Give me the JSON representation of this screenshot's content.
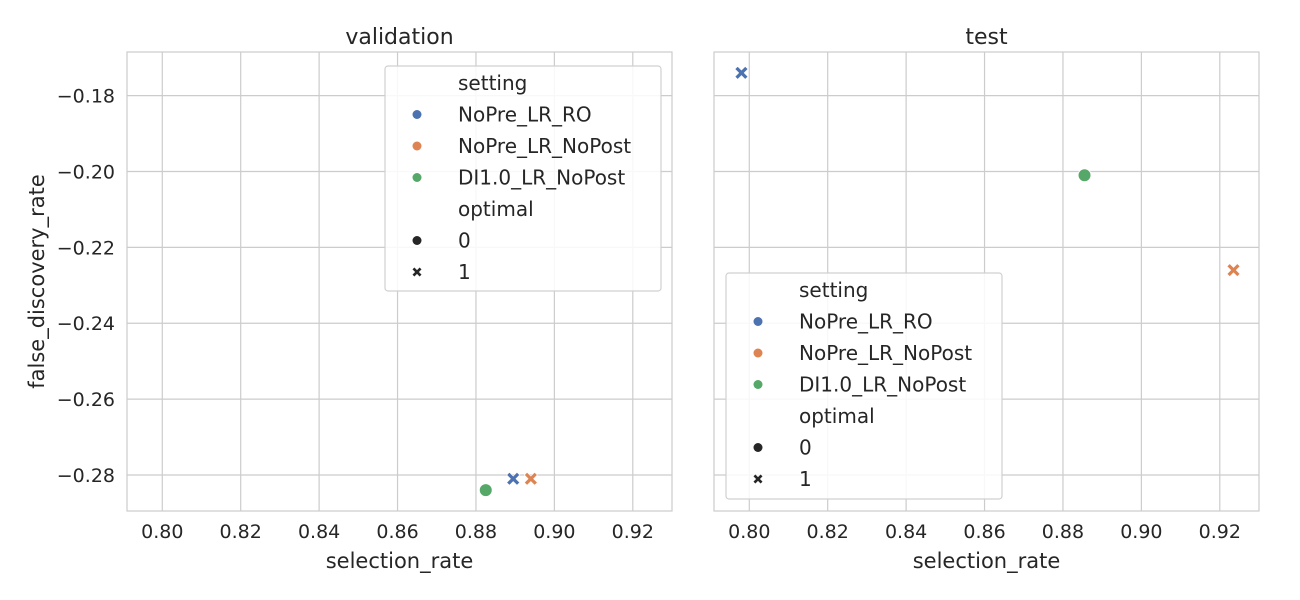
{
  "chart_data": {
    "type": "scatter",
    "xlabel": "selection_rate",
    "ylabel": "false_discovery_rate",
    "xlim": [
      0.791,
      0.93
    ],
    "ylim": [
      -0.2895,
      -0.1685
    ],
    "x_ticks": [
      "0.80",
      "0.82",
      "0.84",
      "0.86",
      "0.88",
      "0.90",
      "0.92"
    ],
    "x_tick_values": [
      0.8,
      0.82,
      0.84,
      0.86,
      0.88,
      0.9,
      0.92
    ],
    "y_ticks": [
      "−0.18",
      "−0.20",
      "−0.22",
      "−0.24",
      "−0.26",
      "−0.28"
    ],
    "y_tick_values": [
      -0.18,
      -0.2,
      -0.22,
      -0.24,
      -0.26,
      -0.28
    ],
    "grid": true,
    "colors": {
      "NoPre_LR_RO": "#4c72b0",
      "NoPre_LR_NoPost": "#dd8452",
      "DI1.0_LR_NoPost": "#55a868"
    },
    "legend": {
      "hue_title": "setting",
      "hue_entries": [
        "NoPre_LR_RO",
        "NoPre_LR_NoPost",
        "DI1.0_LR_NoPost"
      ],
      "style_title": "optimal",
      "style_entries": [
        "0",
        "1"
      ],
      "style_markers": [
        "circle",
        "x"
      ]
    },
    "panels": [
      {
        "title": "validation",
        "legend_placement": "upper-right",
        "points": [
          {
            "setting": "NoPre_LR_RO",
            "optimal": 1,
            "x": 0.8895,
            "y": -0.281
          },
          {
            "setting": "NoPre_LR_NoPost",
            "optimal": 1,
            "x": 0.894,
            "y": -0.281
          },
          {
            "setting": "DI1.0_LR_NoPost",
            "optimal": 0,
            "x": 0.8825,
            "y": -0.284
          }
        ]
      },
      {
        "title": "test",
        "legend_placement": "lower-left",
        "points": [
          {
            "setting": "NoPre_LR_RO",
            "optimal": 1,
            "x": 0.798,
            "y": -0.174
          },
          {
            "setting": "NoPre_LR_NoPost",
            "optimal": 1,
            "x": 0.9235,
            "y": -0.226
          },
          {
            "setting": "DI1.0_LR_NoPost",
            "optimal": 0,
            "x": 0.8855,
            "y": -0.201
          }
        ]
      }
    ]
  }
}
